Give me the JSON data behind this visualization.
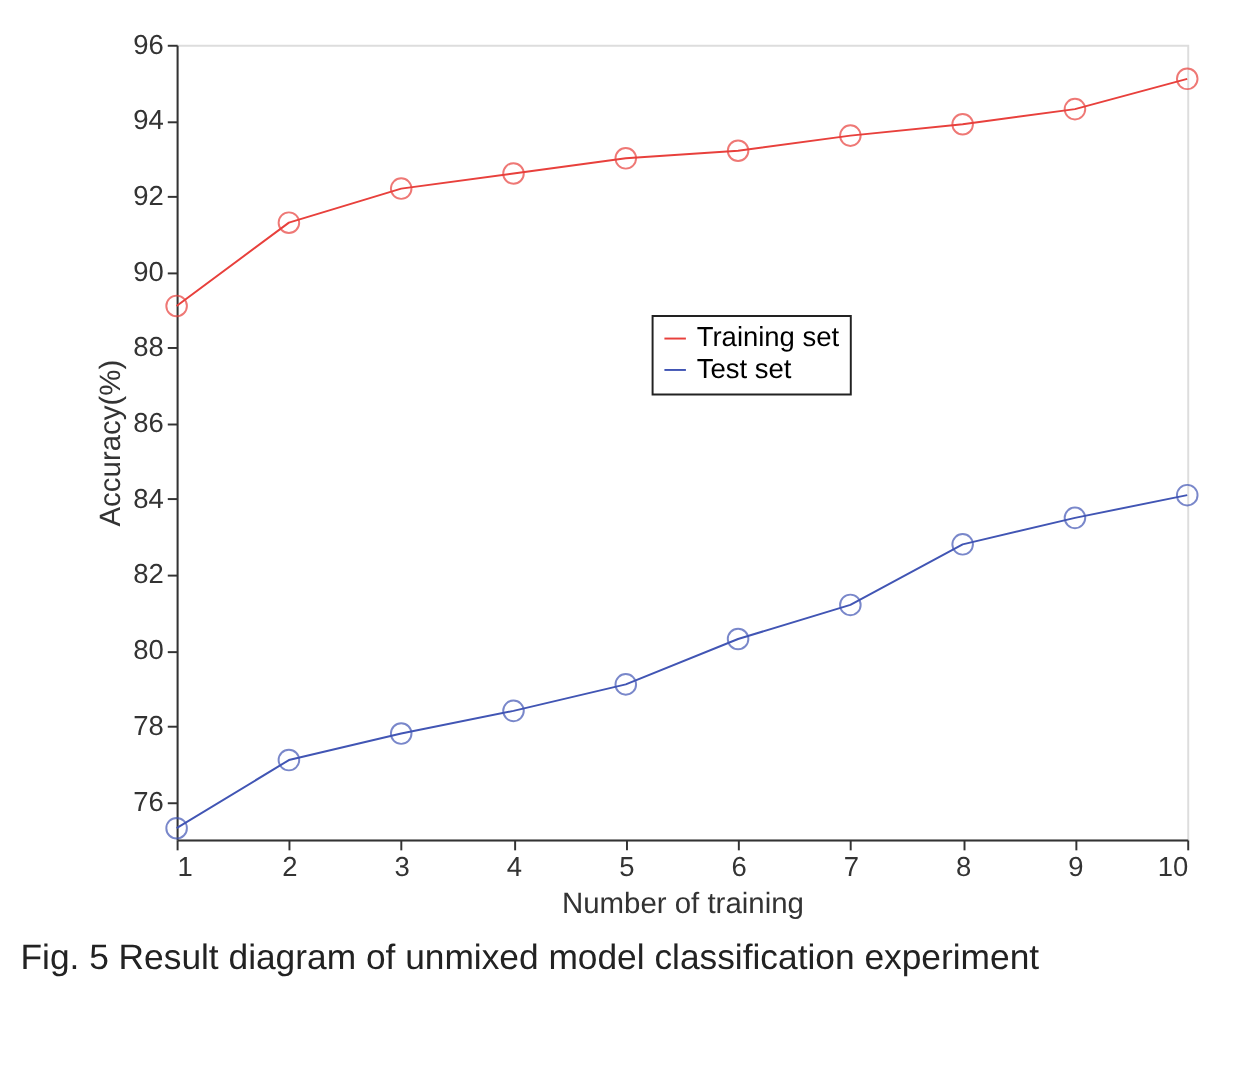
{
  "chart_data": {
    "type": "line",
    "xlabel": "Number of training",
    "ylabel": "Accuracy(%)",
    "x": [
      1,
      2,
      3,
      4,
      5,
      6,
      7,
      8,
      9,
      10
    ],
    "series": [
      {
        "name": "Training set",
        "color": "#e8403c",
        "values": [
          89.1,
          91.3,
          92.2,
          92.6,
          93.0,
          93.2,
          93.6,
          93.9,
          94.3,
          95.1
        ]
      },
      {
        "name": "Test set",
        "color": "#4155b4",
        "values": [
          75.3,
          77.1,
          77.8,
          78.4,
          79.1,
          80.3,
          81.2,
          82.8,
          83.5,
          84.1
        ]
      }
    ],
    "xlim": [
      1,
      10
    ],
    "xticks": [
      1,
      2,
      3,
      4,
      5,
      6,
      7,
      8,
      9,
      10
    ],
    "ylim": [
      75,
      96
    ],
    "yticks": [
      76,
      78,
      80,
      82,
      84,
      86,
      88,
      90,
      92,
      94,
      96
    ],
    "marker": "circle",
    "line_style": "solid",
    "legend": "center",
    "grid": false,
    "annotations": [
      "Fig. 5 Result diagram of unmixed model classification experiment"
    ]
  }
}
